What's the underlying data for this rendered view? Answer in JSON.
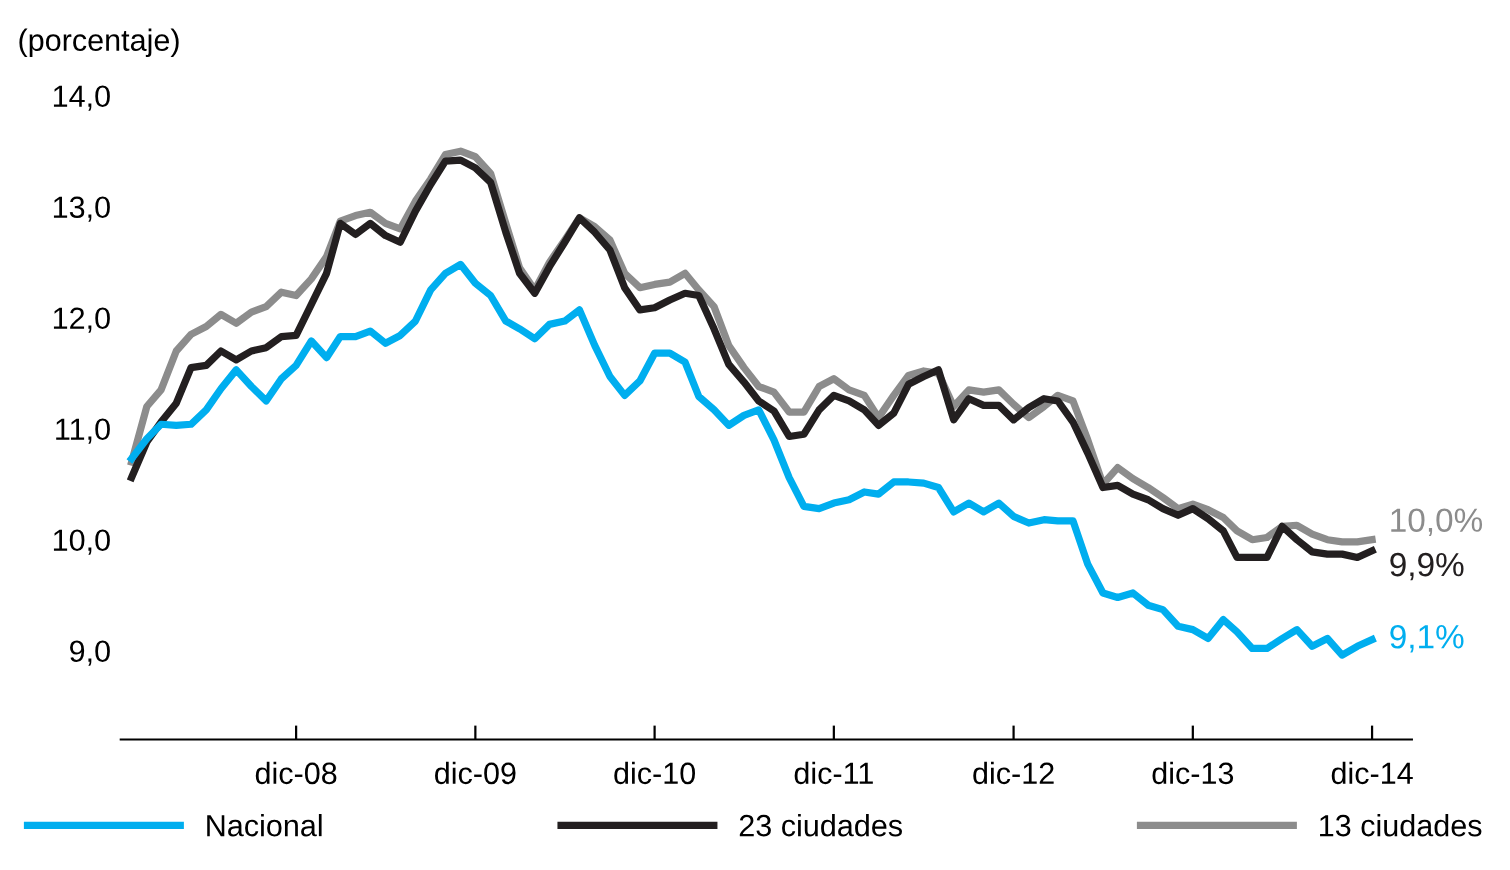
{
  "chart_data": {
    "type": "line",
    "ylabel": "(porcentaje)",
    "x": [
      "2008-01",
      "2008-02",
      "2008-03",
      "2008-04",
      "2008-05",
      "2008-06",
      "2008-07",
      "2008-08",
      "2008-09",
      "2008-10",
      "2008-11",
      "2008-12",
      "2009-01",
      "2009-02",
      "2009-03",
      "2009-04",
      "2009-05",
      "2009-06",
      "2009-07",
      "2009-08",
      "2009-09",
      "2009-10",
      "2009-11",
      "2009-12",
      "2010-01",
      "2010-02",
      "2010-03",
      "2010-04",
      "2010-05",
      "2010-06",
      "2010-07",
      "2010-08",
      "2010-09",
      "2010-10",
      "2010-11",
      "2010-12",
      "2011-01",
      "2011-02",
      "2011-03",
      "2011-04",
      "2011-05",
      "2011-06",
      "2011-07",
      "2011-08",
      "2011-09",
      "2011-10",
      "2011-11",
      "2011-12",
      "2012-01",
      "2012-02",
      "2012-03",
      "2012-04",
      "2012-05",
      "2012-06",
      "2012-07",
      "2012-08",
      "2012-09",
      "2012-10",
      "2012-11",
      "2012-12",
      "2013-01",
      "2013-02",
      "2013-03",
      "2013-04",
      "2013-05",
      "2013-06",
      "2013-07",
      "2013-08",
      "2013-09",
      "2013-10",
      "2013-11",
      "2013-12",
      "2014-01",
      "2014-02",
      "2014-03",
      "2014-04",
      "2014-05",
      "2014-06",
      "2014-07",
      "2014-08",
      "2014-09",
      "2014-10",
      "2014-11",
      "2014-12"
    ],
    "series": [
      {
        "name": "13 ciudades",
        "color": "#8c8c8c",
        "values": [
          10.7,
          11.2,
          11.35,
          11.7,
          11.85,
          11.92,
          12.03,
          11.95,
          12.05,
          12.1,
          12.23,
          12.2,
          12.35,
          12.55,
          12.87,
          12.92,
          12.95,
          12.85,
          12.8,
          13.05,
          13.25,
          13.47,
          13.5,
          13.45,
          13.3,
          12.85,
          12.45,
          12.25,
          12.5,
          12.7,
          12.9,
          12.82,
          12.7,
          12.4,
          12.27,
          12.3,
          12.32,
          12.4,
          12.25,
          12.1,
          11.75,
          11.55,
          11.38,
          11.33,
          11.15,
          11.15,
          11.38,
          11.45,
          11.35,
          11.3,
          11.1,
          11.3,
          11.48,
          11.52,
          11.5,
          11.2,
          11.35,
          11.33,
          11.35,
          11.22,
          11.1,
          11.2,
          11.3,
          11.25,
          10.9,
          10.5,
          10.65,
          10.55,
          10.47,
          10.38,
          10.28,
          10.32,
          10.27,
          10.2,
          10.08,
          10.0,
          10.02,
          10.12,
          10.13,
          10.05,
          10.0,
          9.98,
          9.98,
          10.0
        ]
      },
      {
        "name": "23 ciudades",
        "color": "#231f20",
        "values": [
          10.56,
          10.88,
          11.06,
          11.23,
          11.55,
          11.57,
          11.7,
          11.62,
          11.7,
          11.73,
          11.83,
          11.84,
          12.12,
          12.4,
          12.85,
          12.75,
          12.85,
          12.74,
          12.68,
          12.96,
          13.2,
          13.41,
          13.42,
          13.35,
          13.22,
          12.77,
          12.4,
          12.22,
          12.46,
          12.68,
          12.9,
          12.77,
          12.61,
          12.27,
          12.07,
          12.09,
          12.16,
          12.22,
          12.2,
          11.9,
          11.58,
          11.42,
          11.25,
          11.16,
          10.93,
          10.95,
          11.17,
          11.3,
          11.25,
          11.17,
          11.03,
          11.14,
          11.4,
          11.47,
          11.53,
          11.08,
          11.27,
          11.21,
          11.21,
          11.08,
          11.19,
          11.27,
          11.25,
          11.06,
          10.78,
          10.47,
          10.49,
          10.41,
          10.36,
          10.28,
          10.22,
          10.28,
          10.19,
          10.08,
          9.84,
          9.84,
          9.84,
          10.12,
          10.0,
          9.89,
          9.87,
          9.87,
          9.84,
          9.9
        ]
      },
      {
        "name": "Nacional",
        "color": "#00aeef",
        "values": [
          10.73,
          10.91,
          11.04,
          11.03,
          11.04,
          11.17,
          11.36,
          11.53,
          11.38,
          11.25,
          11.45,
          11.57,
          11.79,
          11.64,
          11.83,
          11.83,
          11.88,
          11.77,
          11.84,
          11.97,
          12.25,
          12.4,
          12.48,
          12.31,
          12.2,
          11.97,
          11.9,
          11.81,
          11.94,
          11.97,
          12.07,
          11.75,
          11.47,
          11.3,
          11.43,
          11.68,
          11.68,
          11.6,
          11.29,
          11.17,
          11.03,
          11.12,
          11.17,
          10.9,
          10.56,
          10.3,
          10.28,
          10.33,
          10.36,
          10.43,
          10.41,
          10.52,
          10.52,
          10.51,
          10.47,
          10.25,
          10.33,
          10.25,
          10.33,
          10.21,
          10.15,
          10.18,
          10.17,
          10.17,
          9.78,
          9.52,
          9.48,
          9.52,
          9.41,
          9.37,
          9.22,
          9.19,
          9.11,
          9.28,
          9.17,
          9.02,
          9.02,
          9.11,
          9.19,
          9.04,
          9.11,
          8.96,
          9.04,
          9.1
        ]
      }
    ],
    "annotations": [
      {
        "text": "10,0%",
        "x": "2014-12",
        "y": 10.0
      },
      {
        "text": "9,9%",
        "x": "2014-12",
        "y": 9.9
      },
      {
        "text": "9,1%",
        "x": "2014-12",
        "y": 9.1
      }
    ],
    "xlim": [
      "2007-12-10",
      "2015-02-20"
    ],
    "xticks": [
      {
        "value": "2008-12",
        "label": "dic-08"
      },
      {
        "value": "2009-12",
        "label": "dic-09"
      },
      {
        "value": "2010-12",
        "label": "dic-10"
      },
      {
        "value": "2011-12",
        "label": "dic-11"
      },
      {
        "value": "2012-12",
        "label": "dic-12"
      },
      {
        "value": "2013-12",
        "label": "dic-13"
      },
      {
        "value": "2014-12",
        "label": "dic-14"
      }
    ],
    "ylim": [
      8.2,
      14.0
    ],
    "yticks": [
      {
        "value": 9,
        "label": "9,0"
      },
      {
        "value": 10,
        "label": "10,0"
      },
      {
        "value": 11,
        "label": "11,0"
      },
      {
        "value": 12,
        "label": "12,0"
      },
      {
        "value": 13,
        "label": "13,0"
      },
      {
        "value": 14,
        "label": "14,0"
      }
    ],
    "grid": false,
    "legend": "bottom",
    "line_style": "solid",
    "marker": "none"
  }
}
